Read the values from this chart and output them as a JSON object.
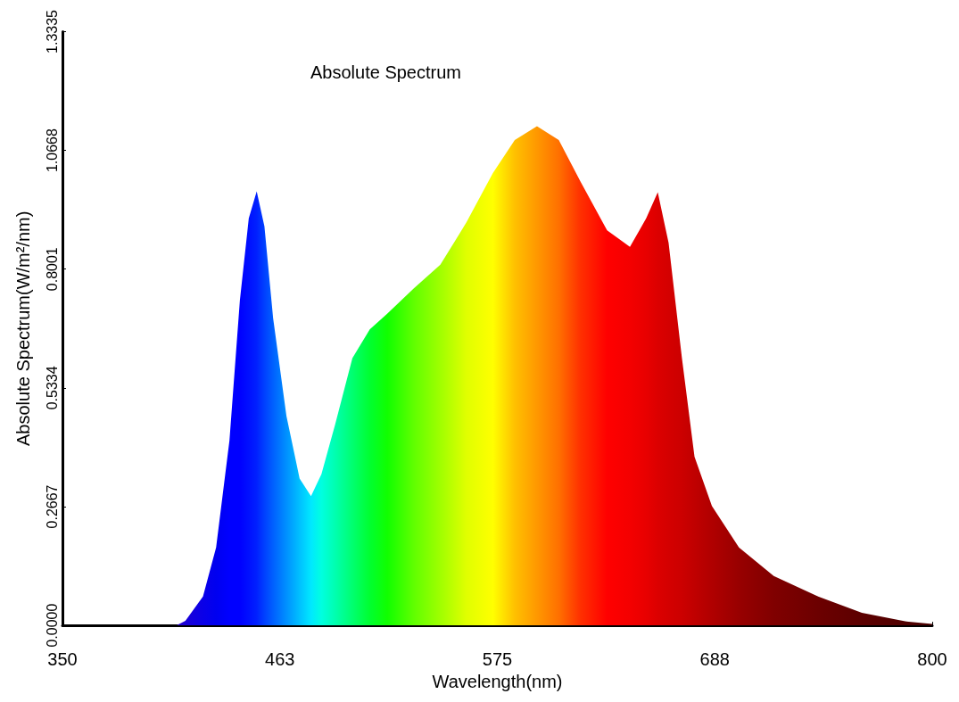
{
  "chart_data": {
    "type": "area",
    "title": "Absolute Spectrum",
    "xlabel": "Wavelength(nm)",
    "ylabel": "Absolute Spectrum(W/m²/nm)",
    "xlim": [
      350,
      800
    ],
    "xticks": [
      350,
      {
        "value": 462.5,
        "label": "463"
      },
      575,
      {
        "value": 687.5,
        "label": "688"
      },
      800
    ],
    "ylim": [
      0,
      1.3335
    ],
    "yticks": [
      {
        "value": 0,
        "label": "0.0000"
      },
      0.2667,
      0.5334,
      0.8001,
      1.0668,
      1.3335
    ],
    "grid": false,
    "marker": "none",
    "series": [
      {
        "x": [
          409,
          413.6,
          422.7,
          429.5,
          436.4,
          441.8,
          446.4,
          450.5,
          454.5,
          459,
          465.9,
          472.7,
          478.6,
          484,
          491,
          500,
          509,
          518,
          531.8,
          545.5,
          559,
          572.7,
          584,
          595.5,
          606.8,
          618,
          631.8,
          643.6,
          652,
          658,
          663.6,
          670.5,
          677,
          686,
          700,
          718,
          741,
          763.6,
          786,
          800
        ],
        "values": [
          0,
          0.01,
          0.065,
          0.175,
          0.415,
          0.73,
          0.914,
          0.975,
          0.896,
          0.69,
          0.47,
          0.33,
          0.29,
          0.34,
          0.45,
          0.6,
          0.665,
          0.7,
          0.757,
          0.81,
          0.905,
          1.016,
          1.09,
          1.121,
          1.09,
          0.997,
          0.887,
          0.85,
          0.914,
          0.973,
          0.859,
          0.6,
          0.379,
          0.268,
          0.175,
          0.111,
          0.065,
          0.028,
          0.009,
          0.003
        ],
        "colors": [
          "#2a00c8",
          "#1a00d8",
          "#0a00e8",
          "#0000f0",
          "#0000ff",
          "#0000ff",
          "#0010ff",
          "#0020ff",
          "#0040ff",
          "#0060ff",
          "#0090ff",
          "#00c0ff",
          "#00e8ff",
          "#00ffe0",
          "#00ffb0",
          "#00ff70",
          "#00ff30",
          "#10ff00",
          "#60ff00",
          "#a0ff00",
          "#e0ff00",
          "#ffff00",
          "#ffc000",
          "#ff9800",
          "#ff7000",
          "#ff3000",
          "#ff0000",
          "#f40000",
          "#e80000",
          "#dc0000",
          "#d40000",
          "#cc0000",
          "#c00000",
          "#b00000",
          "#980000",
          "#800000",
          "#6c0000",
          "#5c0000",
          "#500000",
          "#480000"
        ]
      }
    ]
  }
}
